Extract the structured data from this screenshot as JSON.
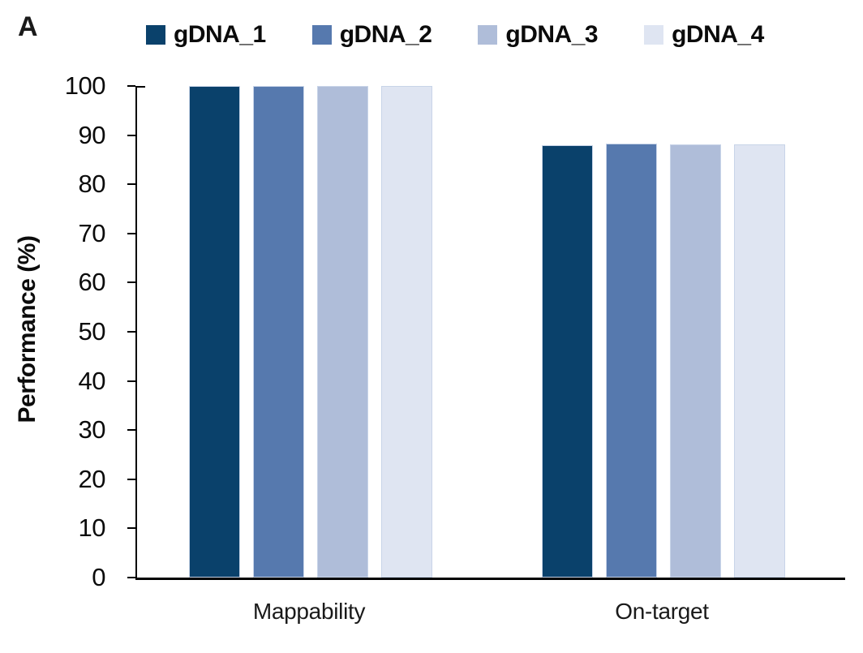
{
  "panel_label": "A",
  "chart_data": {
    "type": "bar",
    "title": "",
    "xlabel": "",
    "ylabel": "Performance (%)",
    "ylim": [
      0,
      100
    ],
    "yticks": [
      0,
      10,
      20,
      30,
      40,
      50,
      60,
      70,
      80,
      90,
      100
    ],
    "categories": [
      "Mappability",
      "On-target"
    ],
    "series": [
      {
        "name": "gDNA_1",
        "color": "#0a416b",
        "values": [
          100,
          88.0
        ]
      },
      {
        "name": "gDNA_2",
        "color": "#5679ae",
        "values": [
          100,
          88.3
        ]
      },
      {
        "name": "gDNA_3",
        "color": "#afbdd9",
        "values": [
          100,
          88.2
        ]
      },
      {
        "name": "gDNA_4",
        "color": "#dfe5f2",
        "values": [
          100,
          88.2
        ]
      }
    ],
    "legend_position": "top",
    "grid": false,
    "axis_color": "#000000",
    "bar_border_color": "#c8d4e8"
  }
}
